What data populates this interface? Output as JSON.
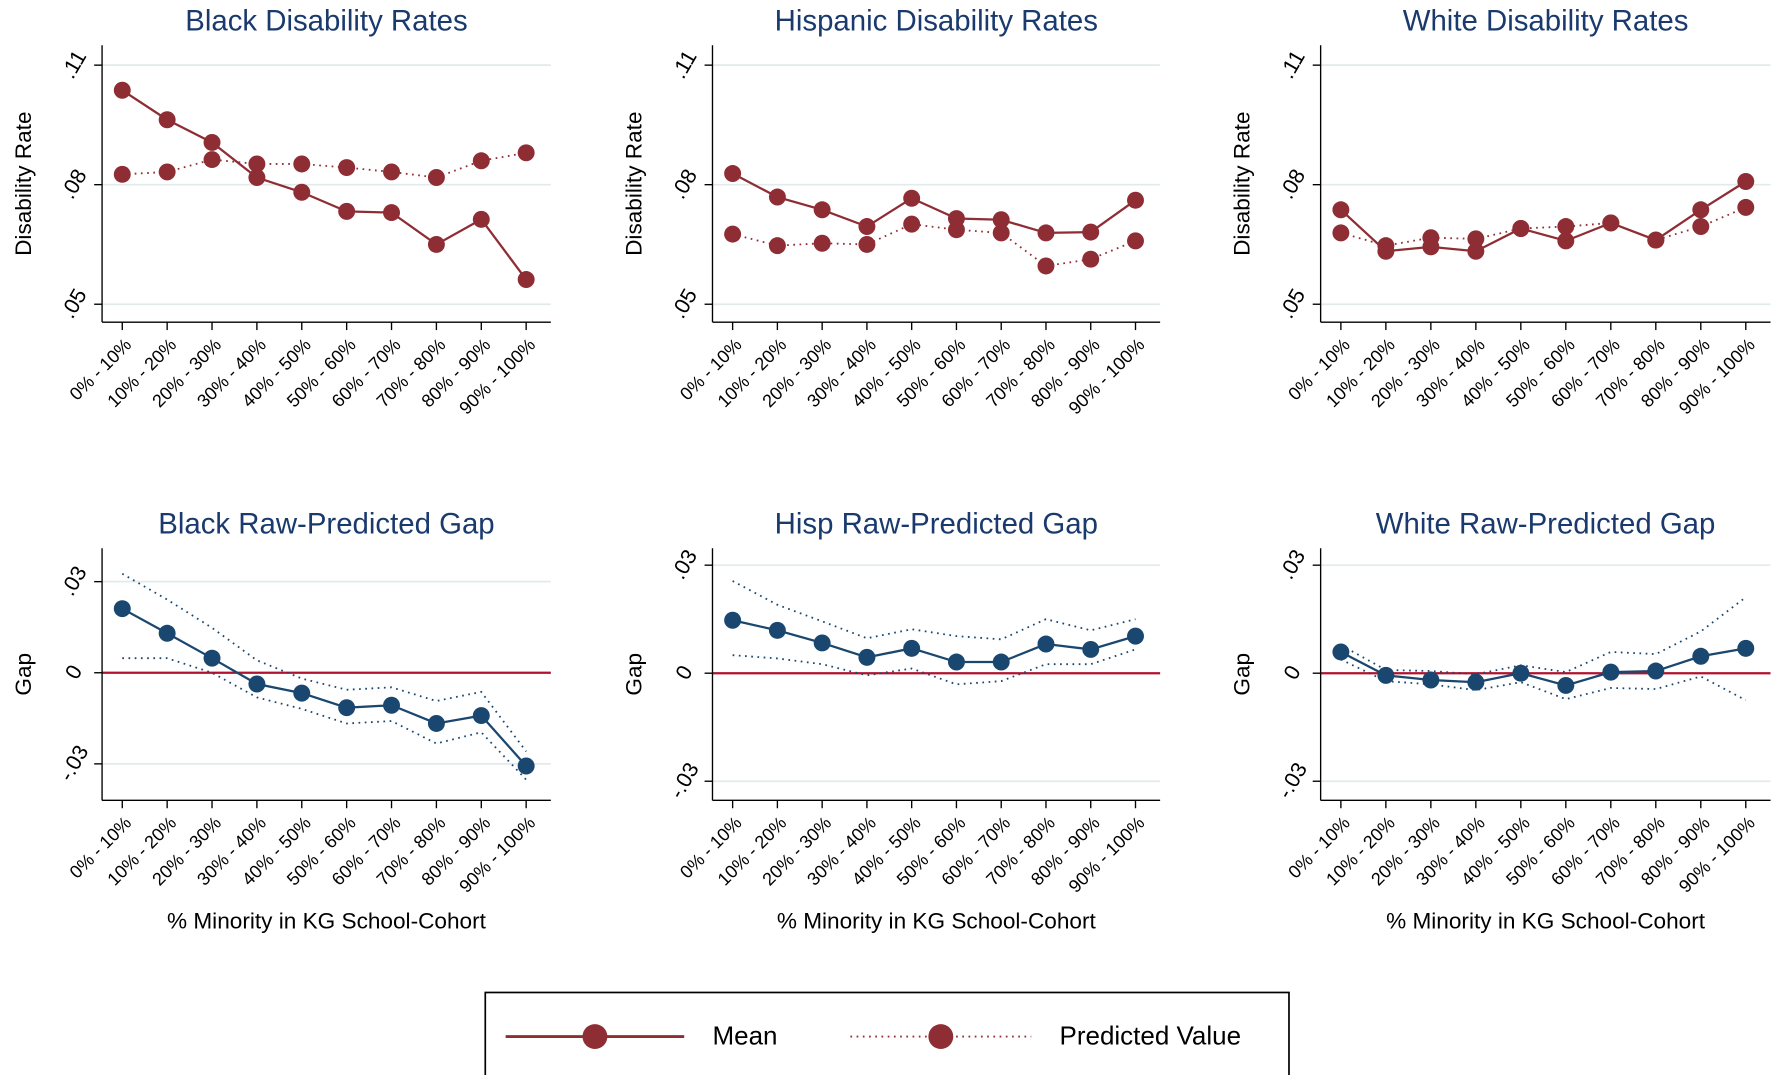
{
  "chart_data": [
    {
      "type": "line",
      "title": "Black Disability Rates",
      "y_label": "Disability Rate",
      "categories": [
        "0% - 10%",
        "10% - 20%",
        "20% - 30%",
        "30% - 40%",
        "40% - 50%",
        "50% - 60%",
        "60% - 70%",
        "70% - 80%",
        "80% - 90%",
        "90% - 100%"
      ],
      "series": [
        {
          "name": "Mean",
          "color": "#8f2d35",
          "line_style": "solid",
          "markers": true,
          "values": [
            0.1037,
            0.0963,
            0.0906,
            0.0818,
            0.0781,
            0.0733,
            0.073,
            0.065,
            0.0713,
            0.0562
          ]
        },
        {
          "name": "Predicted Value",
          "color": "#8f2d35",
          "line_style": "dotted",
          "markers": true,
          "values": [
            0.0826,
            0.0832,
            0.0863,
            0.0852,
            0.0852,
            0.0843,
            0.0832,
            0.0818,
            0.086,
            0.088
          ]
        }
      ],
      "ylim": [
        0.0455,
        0.115
      ],
      "yticks": [
        {
          "value": 0.05,
          "label": ".05"
        },
        {
          "value": 0.08,
          "label": ".08"
        },
        {
          "value": 0.11,
          "label": ".11"
        }
      ],
      "grid": true,
      "legend": "bottom"
    },
    {
      "type": "line",
      "title": "Hispanic Disability Rates",
      "y_label": "Disability Rate",
      "categories": [
        "0% - 10%",
        "10% - 20%",
        "20% - 30%",
        "30% - 40%",
        "40% - 50%",
        "50% - 60%",
        "60% - 70%",
        "70% - 80%",
        "80% - 90%",
        "90% - 100%"
      ],
      "series": [
        {
          "name": "Mean",
          "color": "#8f2d35",
          "line_style": "solid",
          "markers": true,
          "values": [
            0.0828,
            0.0769,
            0.0737,
            0.0695,
            0.0766,
            0.0715,
            0.0712,
            0.0679,
            0.0681,
            0.0761
          ]
        },
        {
          "name": "Predicted Value",
          "color": "#8f2d35",
          "line_style": "dotted",
          "markers": true,
          "values": [
            0.0676,
            0.0647,
            0.0653,
            0.065,
            0.0701,
            0.0687,
            0.0679,
            0.0596,
            0.0613,
            0.0659
          ]
        }
      ],
      "ylim": [
        0.0455,
        0.115
      ],
      "yticks": [
        {
          "value": 0.05,
          "label": ".05"
        },
        {
          "value": 0.08,
          "label": ".08"
        },
        {
          "value": 0.11,
          "label": ".11"
        }
      ],
      "grid": true
    },
    {
      "type": "line",
      "title": "White Disability Rates",
      "y_label": "Disability Rate",
      "categories": [
        "0% - 10%",
        "10% - 20%",
        "20% - 30%",
        "30% - 40%",
        "40% - 50%",
        "50% - 60%",
        "60% - 70%",
        "70% - 80%",
        "80% - 90%",
        "90% - 100%"
      ],
      "series": [
        {
          "name": "Mean",
          "color": "#8f2d35",
          "line_style": "solid",
          "markers": true,
          "values": [
            0.0737,
            0.0633,
            0.0644,
            0.0633,
            0.069,
            0.0659,
            0.0704,
            0.0661,
            0.0737,
            0.0808
          ]
        },
        {
          "name": "Predicted Value",
          "color": "#8f2d35",
          "line_style": "dotted",
          "markers": true,
          "values": [
            0.0679,
            0.0647,
            0.0667,
            0.0664,
            0.069,
            0.0695,
            0.0704,
            0.0661,
            0.0695,
            0.0743
          ]
        }
      ],
      "ylim": [
        0.0455,
        0.115
      ],
      "yticks": [
        {
          "value": 0.05,
          "label": ".05"
        },
        {
          "value": 0.08,
          "label": ".08"
        },
        {
          "value": 0.11,
          "label": ".11"
        }
      ],
      "grid": true
    },
    {
      "type": "line",
      "title": "Black Raw-Predicted Gap",
      "y_label": "Gap",
      "x_label": "% Minority in KG School-Cohort",
      "categories": [
        "0% - 10%",
        "10% - 20%",
        "20% - 30%",
        "30% - 40%",
        "40% - 50%",
        "50% - 60%",
        "60% - 70%",
        "70% - 80%",
        "80% - 90%",
        "90% - 100%"
      ],
      "series": [
        {
          "color": "#1a476f",
          "line_style": "solid",
          "markers": true,
          "values": [
            0.0211,
            0.013,
            0.0048,
            -0.0037,
            -0.0067,
            -0.0115,
            -0.0107,
            -0.0167,
            -0.0141,
            -0.0307
          ]
        },
        {
          "color": "#1a476f",
          "line_style": "dotted",
          "markers": false,
          "values": [
            0.0326,
            0.0241,
            0.0148,
            0.0041,
            -0.0019,
            -0.0056,
            -0.0048,
            -0.0093,
            -0.0063,
            -0.0259
          ]
        },
        {
          "color": "#1a476f",
          "line_style": "dotted",
          "markers": false,
          "values": [
            0.0048,
            0.0048,
            0,
            -0.0081,
            -0.0119,
            -0.0167,
            -0.0159,
            -0.0233,
            -0.0196,
            -0.0352
          ]
        }
      ],
      "ylim": [
        -0.042,
        0.041
      ],
      "yticks": [
        {
          "value": -0.03,
          "label": "-.03"
        },
        0,
        {
          "value": 0.03,
          "label": ".03"
        }
      ],
      "grid": true,
      "reference_line": {
        "value": 0,
        "color": "#b0132e"
      }
    },
    {
      "type": "line",
      "title": "Hisp Raw-Predicted Gap",
      "y_label": "Gap",
      "x_label": "% Minority in KG School-Cohort",
      "categories": [
        "0% - 10%",
        "10% - 20%",
        "20% - 30%",
        "30% - 40%",
        "40% - 50%",
        "50% - 60%",
        "60% - 70%",
        "70% - 80%",
        "80% - 90%",
        "90% - 100%"
      ],
      "series": [
        {
          "color": "#1a476f",
          "line_style": "solid",
          "markers": true,
          "values": [
            0.0147,
            0.0119,
            0.0084,
            0.0044,
            0.0069,
            0.0031,
            0.0031,
            0.0081,
            0.0066,
            0.0103
          ]
        },
        {
          "color": "#1a476f",
          "line_style": "dotted",
          "markers": false,
          "values": [
            0.0256,
            0.019,
            0.0144,
            0.0097,
            0.0122,
            0.0103,
            0.0094,
            0.015,
            0.0119,
            0.015
          ]
        },
        {
          "color": "#1a476f",
          "line_style": "dotted",
          "markers": false,
          "values": [
            0.005,
            0.0041,
            0.0025,
            -0.0006,
            0.0013,
            -0.0031,
            -0.0022,
            0.0025,
            0.0025,
            0.0066
          ]
        }
      ],
      "ylim": [
        -0.0353,
        0.0347
      ],
      "yticks": [
        {
          "value": -0.03,
          "label": "-.03"
        },
        0,
        {
          "value": 0.03,
          "label": ".03"
        }
      ],
      "grid": true,
      "reference_line": {
        "value": 0,
        "color": "#b0132e"
      }
    },
    {
      "type": "line",
      "title": "White Raw-Predicted Gap",
      "y_label": "Gap",
      "x_label": "% Minority in KG School-Cohort",
      "categories": [
        "0% - 10%",
        "10% - 20%",
        "20% - 30%",
        "30% - 40%",
        "40% - 50%",
        "50% - 60%",
        "60% - 70%",
        "70% - 80%",
        "80% - 90%",
        "90% - 100%"
      ],
      "series": [
        {
          "color": "#1a476f",
          "line_style": "solid",
          "markers": true,
          "values": [
            0.0059,
            -0.0006,
            -0.0019,
            -0.0025,
            0,
            -0.0034,
            0.0003,
            0.0006,
            0.0047,
            0.0069
          ]
        },
        {
          "color": "#1a476f",
          "line_style": "dotted",
          "markers": false,
          "values": [
            0.0078,
            0.0009,
            0.0006,
            -0.0003,
            0.0022,
            0.0003,
            0.0059,
            0.0053,
            0.0116,
            0.0211
          ]
        },
        {
          "color": "#1a476f",
          "line_style": "dotted",
          "markers": false,
          "values": [
            0.0038,
            -0.0022,
            -0.0031,
            -0.0047,
            -0.0025,
            -0.0072,
            -0.0041,
            -0.0044,
            -0.0009,
            -0.0075
          ]
        }
      ],
      "ylim": [
        -0.0353,
        0.0347
      ],
      "yticks": [
        {
          "value": -0.03,
          "label": "-.03"
        },
        0,
        {
          "value": 0.03,
          "label": ".03"
        }
      ],
      "grid": true,
      "reference_line": {
        "value": 0,
        "color": "#b0132e"
      }
    }
  ]
}
